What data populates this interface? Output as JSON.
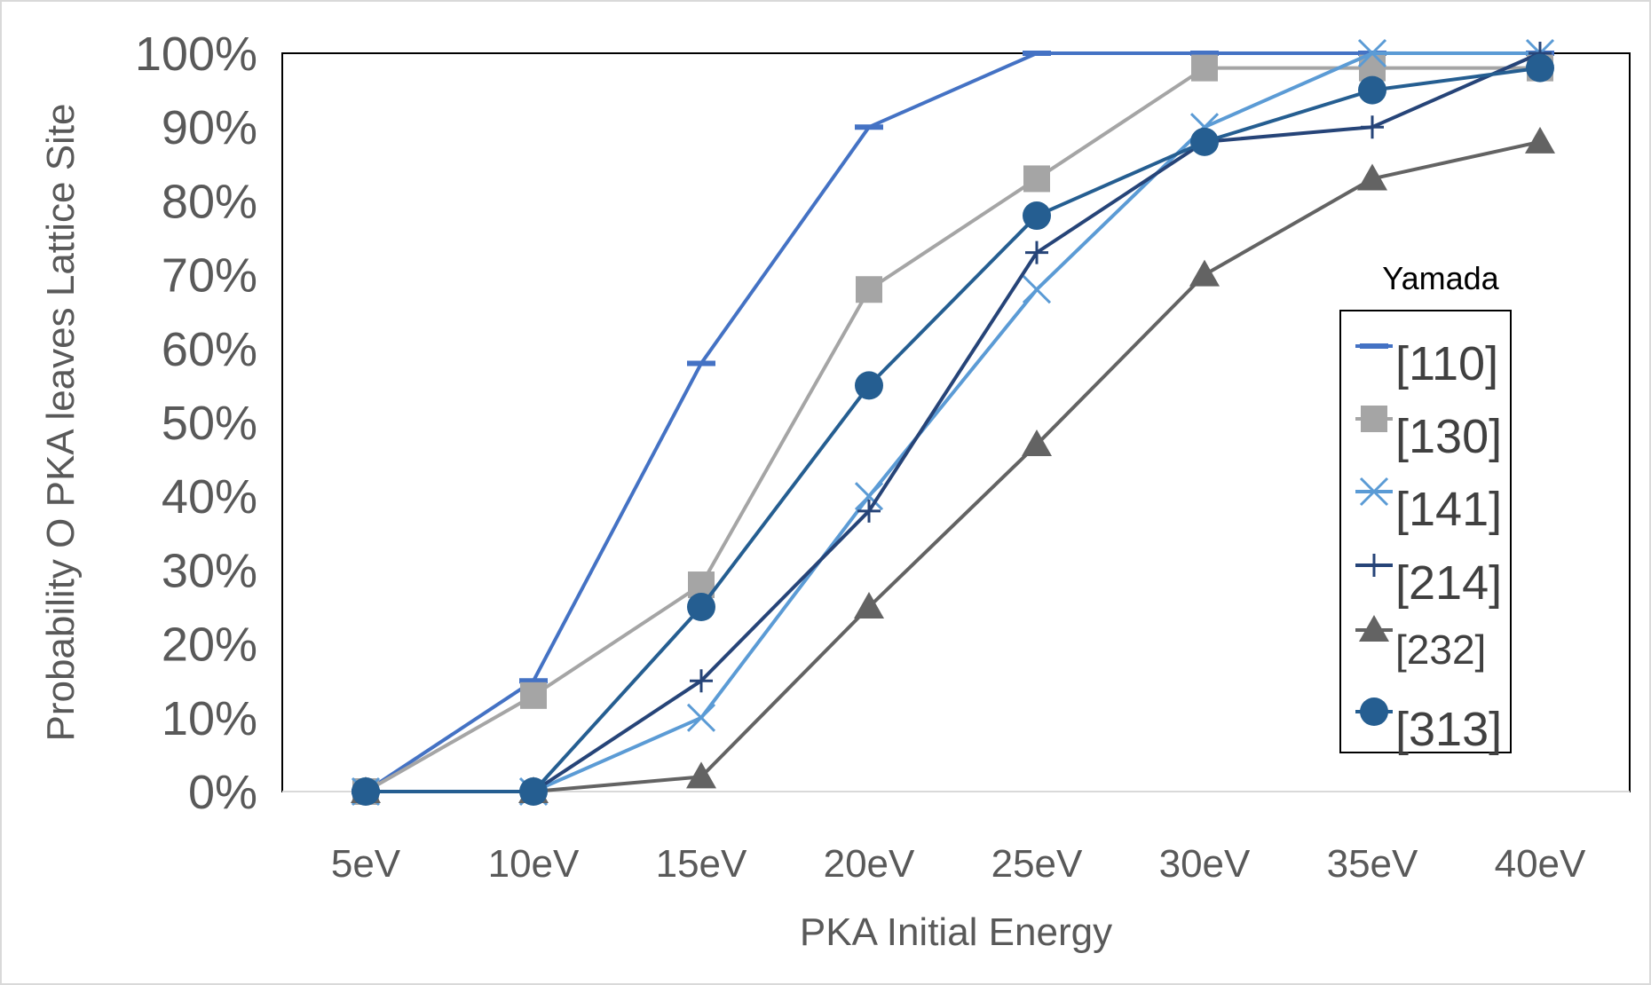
{
  "chart_data": {
    "type": "line",
    "title": "",
    "xlabel": "PKA Initial Energy",
    "ylabel": "Probability O PKA leaves Lattice Site",
    "categories": [
      "5eV",
      "10eV",
      "15eV",
      "20eV",
      "25eV",
      "30eV",
      "35eV",
      "40eV"
    ],
    "ylim": [
      0,
      100
    ],
    "yticks": [
      "0%",
      "10%",
      "20%",
      "30%",
      "40%",
      "50%",
      "60%",
      "70%",
      "80%",
      "90%",
      "100%"
    ],
    "grid": false,
    "legend_title": "Yamada",
    "legend_position": "right",
    "series": [
      {
        "name": "[110]",
        "color": "#4472C4",
        "marker": "dash",
        "values": [
          0,
          15,
          58,
          90,
          100,
          100,
          100,
          100
        ]
      },
      {
        "name": "[130]",
        "color": "#A5A5A5",
        "marker": "square",
        "values": [
          0,
          13,
          28,
          68,
          83,
          98,
          98,
          98
        ]
      },
      {
        "name": "[141]",
        "color": "#5B9BD5",
        "marker": "x",
        "values": [
          0,
          0,
          10,
          40,
          68,
          90,
          100,
          100
        ]
      },
      {
        "name": "[214]",
        "color": "#264478",
        "marker": "plus",
        "values": [
          0,
          0,
          15,
          38,
          73,
          88,
          90,
          100
        ]
      },
      {
        "name": "[232]",
        "color": "#636363",
        "marker": "triangle",
        "values": [
          0,
          0,
          2,
          25,
          47,
          70,
          83,
          88
        ]
      },
      {
        "name": "[313]",
        "color": "#255E91",
        "marker": "circle",
        "values": [
          0,
          0,
          25,
          55,
          78,
          88,
          95,
          98
        ]
      }
    ]
  }
}
